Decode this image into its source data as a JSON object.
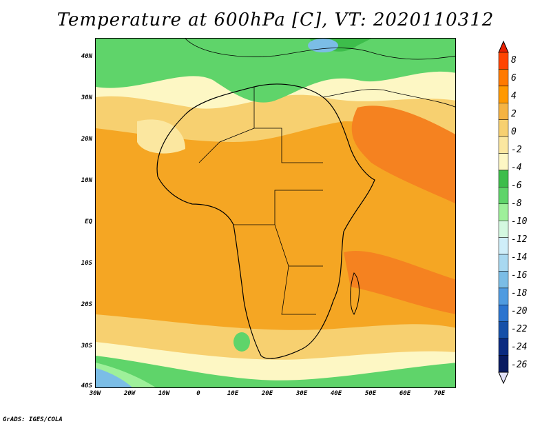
{
  "title": "Temperature at 600hPa [C], VT: 2020110312",
  "credit": "GrADS: IGES/COLA",
  "lat_labels": [
    "40N",
    "30N",
    "20N",
    "10N",
    "EQ",
    "10S",
    "20S",
    "30S",
    "40S"
  ],
  "lon_labels": [
    "30W",
    "20W",
    "10W",
    "0",
    "10E",
    "20E",
    "30E",
    "40E",
    "50E",
    "60E",
    "70E"
  ],
  "colorbar": {
    "labels": [
      "8",
      "6",
      "4",
      "2",
      "0",
      "-2",
      "-4",
      "-6",
      "-8",
      "-10",
      "-12",
      "-14",
      "-16",
      "-18",
      "-20",
      "-22",
      "-24",
      "-26"
    ],
    "colors": [
      "#ff4400",
      "#ff7a00",
      "#ff9900",
      "#f5b342",
      "#f7d070",
      "#fbe7a0",
      "#fdf7c4",
      "#3dbd4b",
      "#5fd46a",
      "#9ef09a",
      "#d4f8e0",
      "#cfeef9",
      "#a8d8f0",
      "#7bbde6",
      "#4f9be0",
      "#2b74cf",
      "#1650a8",
      "#0a2a80",
      "#081a60"
    ],
    "top_color": "#e82000",
    "bottom_color": "#e0e0f8"
  },
  "map_data": {
    "fields": [
      {
        "name": "north-green",
        "color": "#5fd46a"
      },
      {
        "name": "med-sea-cool",
        "color": "#3dbd4b"
      },
      {
        "name": "sahara-band",
        "color": "#fdf7c4"
      },
      {
        "name": "tropics",
        "color": "#f5a623"
      },
      {
        "name": "arabia-warm",
        "color": "#f58220"
      },
      {
        "name": "south-band",
        "color": "#f7d070"
      },
      {
        "name": "south-green",
        "color": "#5fd46a"
      },
      {
        "name": "south-cold",
        "color": "#7bbde6"
      }
    ]
  }
}
